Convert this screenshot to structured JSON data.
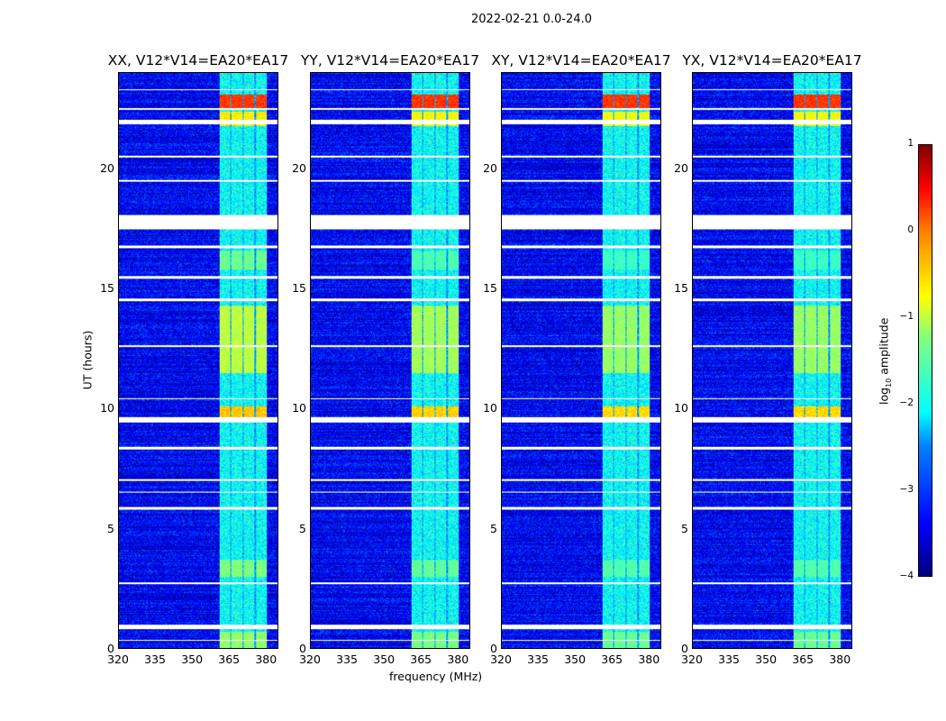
{
  "chart_data": {
    "type": "heatmap",
    "suptitle": "2022-02-21 0.0-24.0",
    "xlabel": "frequency (MHz)",
    "ylabel": "UT (hours)",
    "xlim": [
      320,
      385
    ],
    "ylim": [
      0,
      24
    ],
    "xticks": [
      "320",
      "335",
      "350",
      "365",
      "380"
    ],
    "yticks": [
      "0",
      "5",
      "10",
      "15",
      "20"
    ],
    "panels": [
      {
        "title": "XX, V12*V14=EA20*EA17",
        "rfi_level": 1.0
      },
      {
        "title": "YY, V12*V14=EA20*EA17",
        "rfi_level": 0.9
      },
      {
        "title": "XY, V12*V14=EA20*EA17",
        "rfi_level": 0.85
      },
      {
        "title": "YX, V12*V14=EA20*EA17",
        "rfi_level": 0.85
      }
    ],
    "background_log10_amplitude": -3.4,
    "rfi_subbands_mhz": [
      [
        361,
        365.5
      ],
      [
        366,
        370.5
      ],
      [
        371,
        375.5
      ],
      [
        376,
        380.5
      ]
    ],
    "rfi_epochs": [
      {
        "t": [
          22.5,
          23.1
        ],
        "log10_amplitude": 0.1
      },
      {
        "t": [
          21.8,
          22.4
        ],
        "log10_amplitude": -0.8
      },
      {
        "t": [
          9.6,
          10.1
        ],
        "log10_amplitude": -0.6
      },
      {
        "t": [
          11.5,
          14.3
        ],
        "log10_amplitude": -1.2
      },
      {
        "t": [
          3.0,
          3.7
        ],
        "log10_amplitude": -1.5
      },
      {
        "t": [
          0,
          0.7
        ],
        "log10_amplitude": -1.4
      },
      {
        "t": [
          15.8,
          16.6
        ],
        "log10_amplitude": -1.6
      }
    ],
    "flagged_hours": [
      [
        17.5,
        18.1
      ],
      [
        21.9,
        22.05
      ],
      [
        9.45,
        9.65
      ],
      [
        0.8,
        1.0
      ],
      [
        16.7,
        16.8
      ],
      [
        15.45,
        15.55
      ],
      [
        14.5,
        14.6
      ],
      [
        8.3,
        8.4
      ],
      [
        7.0,
        7.05
      ],
      [
        5.8,
        5.9
      ],
      [
        2.7,
        2.75
      ],
      [
        0.3,
        0.35
      ],
      [
        19.5,
        19.55
      ],
      [
        20.5,
        20.55
      ],
      [
        22.5,
        22.55
      ],
      [
        23.3,
        23.35
      ],
      [
        12.6,
        12.65
      ],
      [
        10.4,
        10.45
      ],
      [
        6.5,
        6.55
      ]
    ],
    "colorbar": {
      "label": "log10 amplitude",
      "label_main": "log",
      "label_sub": "10",
      "label_rest": " amplitude",
      "ticks": [
        "1",
        "0",
        "−1",
        "−2",
        "−3",
        "−4"
      ],
      "range": [
        -4,
        1
      ]
    }
  }
}
